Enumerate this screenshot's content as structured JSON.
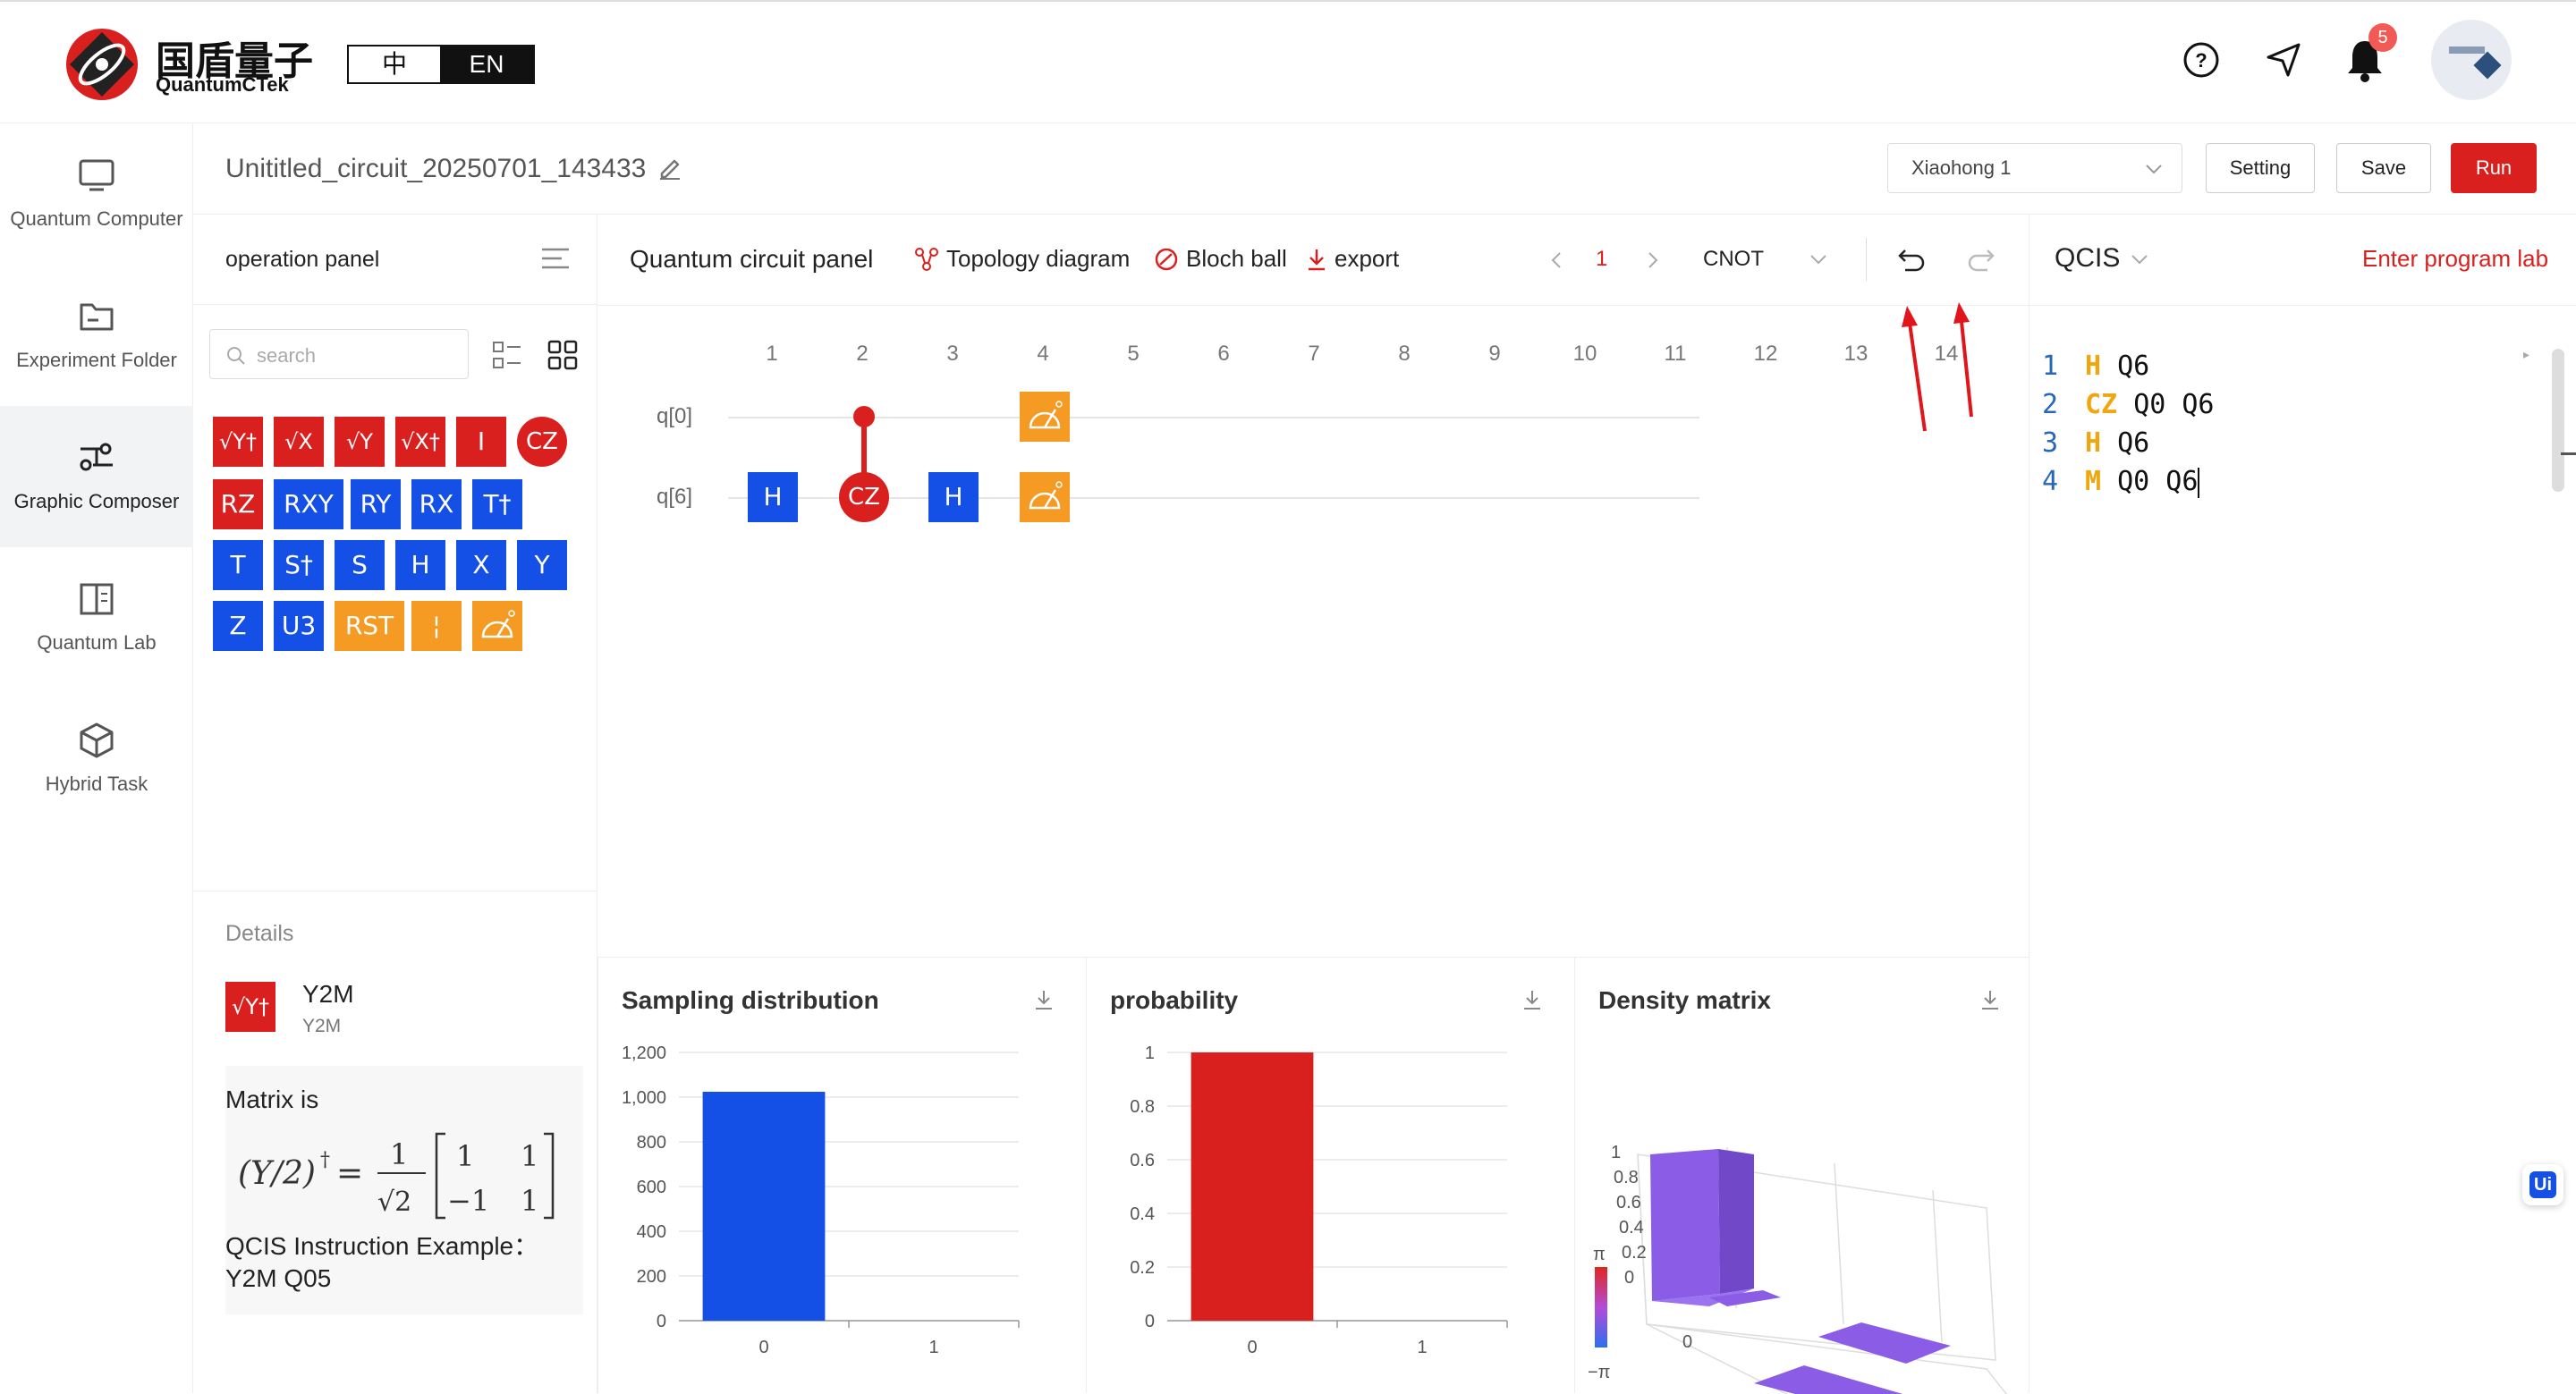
{
  "brand": {
    "name_cn": "国盾量子",
    "name_en": "QuantumCTek"
  },
  "lang": {
    "cn": "中",
    "en": "EN"
  },
  "header": {
    "notification_count": "5"
  },
  "sidebar": {
    "items": [
      {
        "label": "Quantum Computer",
        "icon": "monitor-icon"
      },
      {
        "label": "Experiment Folder",
        "icon": "folder-icon"
      },
      {
        "label": "Graphic Composer",
        "icon": "composer-icon"
      },
      {
        "label": "Quantum Lab",
        "icon": "book-icon"
      },
      {
        "label": "Hybrid Task",
        "icon": "cube-icon"
      }
    ]
  },
  "title": {
    "circuit_name": "Unititled_circuit_20250701_143433",
    "computer": "Xiaohong 1",
    "setting": "Setting",
    "save": "Save",
    "run": "Run"
  },
  "operation_panel": {
    "title": "operation panel",
    "search_placeholder": "search"
  },
  "gates": [
    {
      "label": "√Y†",
      "color": "#d9201f"
    },
    {
      "label": "√X",
      "color": "#d9201f"
    },
    {
      "label": "√Y",
      "color": "#d9201f"
    },
    {
      "label": "√X†",
      "color": "#d9201f"
    },
    {
      "label": "I",
      "color": "#d9201f"
    },
    {
      "label": "CZ",
      "color": "#d9201f"
    },
    {
      "label": "RZ",
      "color": "#d9201f"
    },
    {
      "label": "RXY",
      "color": "#1450e6"
    },
    {
      "label": "RY",
      "color": "#1450e6"
    },
    {
      "label": "RX",
      "color": "#1450e6"
    },
    {
      "label": "T†",
      "color": "#1450e6"
    },
    {
      "label": "T",
      "color": "#1450e6"
    },
    {
      "label": "S†",
      "color": "#1450e6"
    },
    {
      "label": "S",
      "color": "#1450e6"
    },
    {
      "label": "H",
      "color": "#1450e6"
    },
    {
      "label": "X",
      "color": "#1450e6"
    },
    {
      "label": "Y",
      "color": "#1450e6"
    },
    {
      "label": "Z",
      "color": "#1450e6"
    },
    {
      "label": "U3",
      "color": "#1450e6"
    },
    {
      "label": "RST",
      "color": "#f59a23"
    },
    {
      "label": "¦",
      "color": "#f59a23"
    },
    {
      "label": "M",
      "color": "#f59a23"
    }
  ],
  "details": {
    "heading": "Details",
    "gate_name": "Y2M",
    "gate_sub": "Y2M",
    "gate_icon": "√Y†",
    "matrix_label": "Matrix is",
    "example_label": "QCIS Instruction Example：",
    "example": "Y2M Q05"
  },
  "circuit_panel": {
    "title": "Quantum circuit panel",
    "topology": "Topology diagram",
    "bloch": "Bloch ball",
    "export": "export",
    "page": "1",
    "gate_select": "CNOT",
    "columns": [
      "1",
      "2",
      "3",
      "4",
      "5",
      "6",
      "7",
      "8",
      "9",
      "10",
      "11",
      "12",
      "13",
      "14"
    ],
    "qubits": [
      "q[0]",
      "q[6]"
    ],
    "gates": [
      {
        "qubit": "q[6]",
        "col": 1,
        "label": "H"
      },
      {
        "qubit": "q[6]",
        "col": 2,
        "label": "CZ",
        "control": "q[0]"
      },
      {
        "qubit": "q[6]",
        "col": 3,
        "label": "H"
      },
      {
        "qubit": "q[0]",
        "col": 4,
        "label": "M"
      },
      {
        "qubit": "q[6]",
        "col": 4,
        "label": "M"
      }
    ]
  },
  "qcis": {
    "title": "QCIS",
    "enter_lab": "Enter program lab",
    "lines": [
      {
        "n": "1",
        "op": "H",
        "args": "Q6"
      },
      {
        "n": "2",
        "op": "CZ",
        "args": "Q0 Q6"
      },
      {
        "n": "3",
        "op": "H",
        "args": "Q6"
      },
      {
        "n": "4",
        "op": "M",
        "args": "Q0 Q6"
      }
    ]
  },
  "chart_data": [
    {
      "type": "bar",
      "title": "Sampling distribution",
      "categories": [
        "0",
        "1"
      ],
      "values": [
        1024,
        0
      ],
      "ylim": [
        0,
        1200
      ],
      "yticks": [
        "0",
        "200",
        "400",
        "600",
        "800",
        "1,000",
        "1,200"
      ],
      "color": "#1450e6"
    },
    {
      "type": "bar",
      "title": "probability",
      "categories": [
        "0",
        "1"
      ],
      "values": [
        1,
        0
      ],
      "ylim": [
        0,
        1
      ],
      "yticks": [
        "0",
        "0.2",
        "0.4",
        "0.6",
        "0.8",
        "1"
      ],
      "color": "#d9201f"
    },
    {
      "type": "bar3d",
      "title": "Density matrix",
      "zticks": [
        "0",
        "0.2",
        "0.4",
        "0.6",
        "0.8",
        "1"
      ],
      "colorbar": {
        "top": "π",
        "bottom": "−π"
      },
      "axis_label": "0",
      "color": "#8b5ce6"
    }
  ],
  "ui_badge": "Ui"
}
